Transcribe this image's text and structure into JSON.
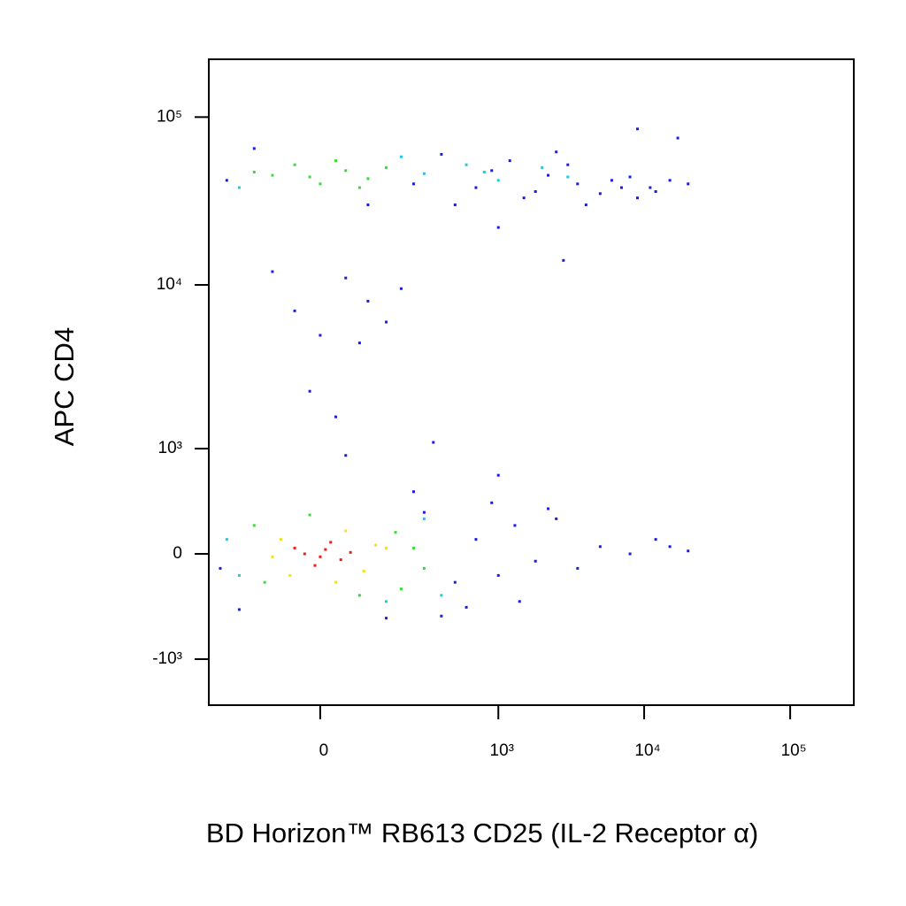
{
  "chart_data": {
    "type": "scatter",
    "x_label": "BD Horizon™ RB613 CD25 (IL-2 Receptor α)",
    "y_label": "APC CD4",
    "xscale": "biexponential",
    "yscale": "biexponential",
    "xlim": [
      -340,
      272700
    ],
    "ylim": [
      -1960,
      221000
    ],
    "xticks": [
      0,
      {
        "value": 1000,
        "label": "10³"
      },
      {
        "value": 10000,
        "label": "10⁴"
      },
      {
        "value": 100000,
        "label": "10⁵"
      }
    ],
    "yticks": [
      {
        "value": -1000,
        "label": "-10³"
      },
      0,
      {
        "value": 1000,
        "label": "10³"
      },
      {
        "value": 10000,
        "label": "10⁴"
      },
      {
        "value": 100000,
        "label": "10⁵"
      }
    ],
    "series": [
      {
        "color": "#1c1ce0",
        "x": [
          -250,
          400,
          700,
          1200,
          1800,
          2500,
          3500,
          5000,
          7000,
          9000,
          12000,
          15000,
          20000,
          500,
          900,
          1500,
          2200,
          4000,
          6000,
          -150,
          100,
          3000,
          8000,
          11000,
          250,
          9000,
          17000,
          2800,
          1000,
          -280,
          300,
          500,
          700,
          1000,
          1300,
          1800,
          2500,
          3500,
          5000,
          8000,
          12000,
          15000,
          20000,
          600,
          900,
          1400,
          2200,
          400,
          -200,
          150,
          250,
          -100,
          50,
          100,
          -50,
          150,
          0,
          80,
          -20,
          200,
          30,
          50,
          1000,
          350
        ],
        "values": [
          42000,
          60000,
          38000,
          55000,
          36000,
          62000,
          40000,
          35000,
          38000,
          33000,
          36000,
          42000,
          40000,
          30000,
          48000,
          33000,
          45000,
          30000,
          42000,
          65000,
          30000,
          52000,
          44000,
          38000,
          40000,
          85000,
          75000,
          14000,
          22000,
          -100,
          300,
          -200,
          100,
          -150,
          200,
          -50,
          250,
          -100,
          50,
          0,
          100,
          50,
          20,
          -400,
          380,
          -350,
          330,
          -480,
          -420,
          -500,
          480,
          12000,
          11000,
          8000,
          7000,
          6000,
          5000,
          4500,
          2300,
          9500,
          1600,
          900,
          650,
          1100
        ]
      },
      {
        "color": "#22c8e0",
        "x": [
          300,
          600,
          1000,
          2000,
          3000,
          -200,
          200,
          800,
          -200,
          300,
          400,
          -250,
          150
        ],
        "values": [
          46000,
          52000,
          42000,
          50000,
          44000,
          38000,
          58000,
          47000,
          -150,
          250,
          -300,
          100,
          -350
        ]
      },
      {
        "color": "#3ed83e",
        "x": [
          -150,
          200,
          -120,
          180,
          250,
          -20,
          80,
          300,
          -100,
          -50,
          0,
          50,
          100,
          150,
          -150,
          30,
          80,
          -20
        ],
        "values": [
          200,
          -250,
          -200,
          150,
          40,
          280,
          -300,
          -100,
          45000,
          52000,
          40000,
          48000,
          43000,
          50000,
          47000,
          55000,
          38000,
          44000
        ]
      },
      {
        "color": "#f2e020",
        "x": [
          -80,
          90,
          120,
          -60,
          50,
          30,
          -100,
          150
        ],
        "values": [
          100,
          -120,
          60,
          -150,
          160,
          -200,
          -20,
          40
        ]
      },
      {
        "color": "#e82018",
        "x": [
          -30,
          10,
          40,
          -10,
          20,
          60,
          0,
          -50
        ],
        "values": [
          0,
          30,
          -40,
          -80,
          80,
          10,
          -20,
          40
        ]
      }
    ]
  }
}
